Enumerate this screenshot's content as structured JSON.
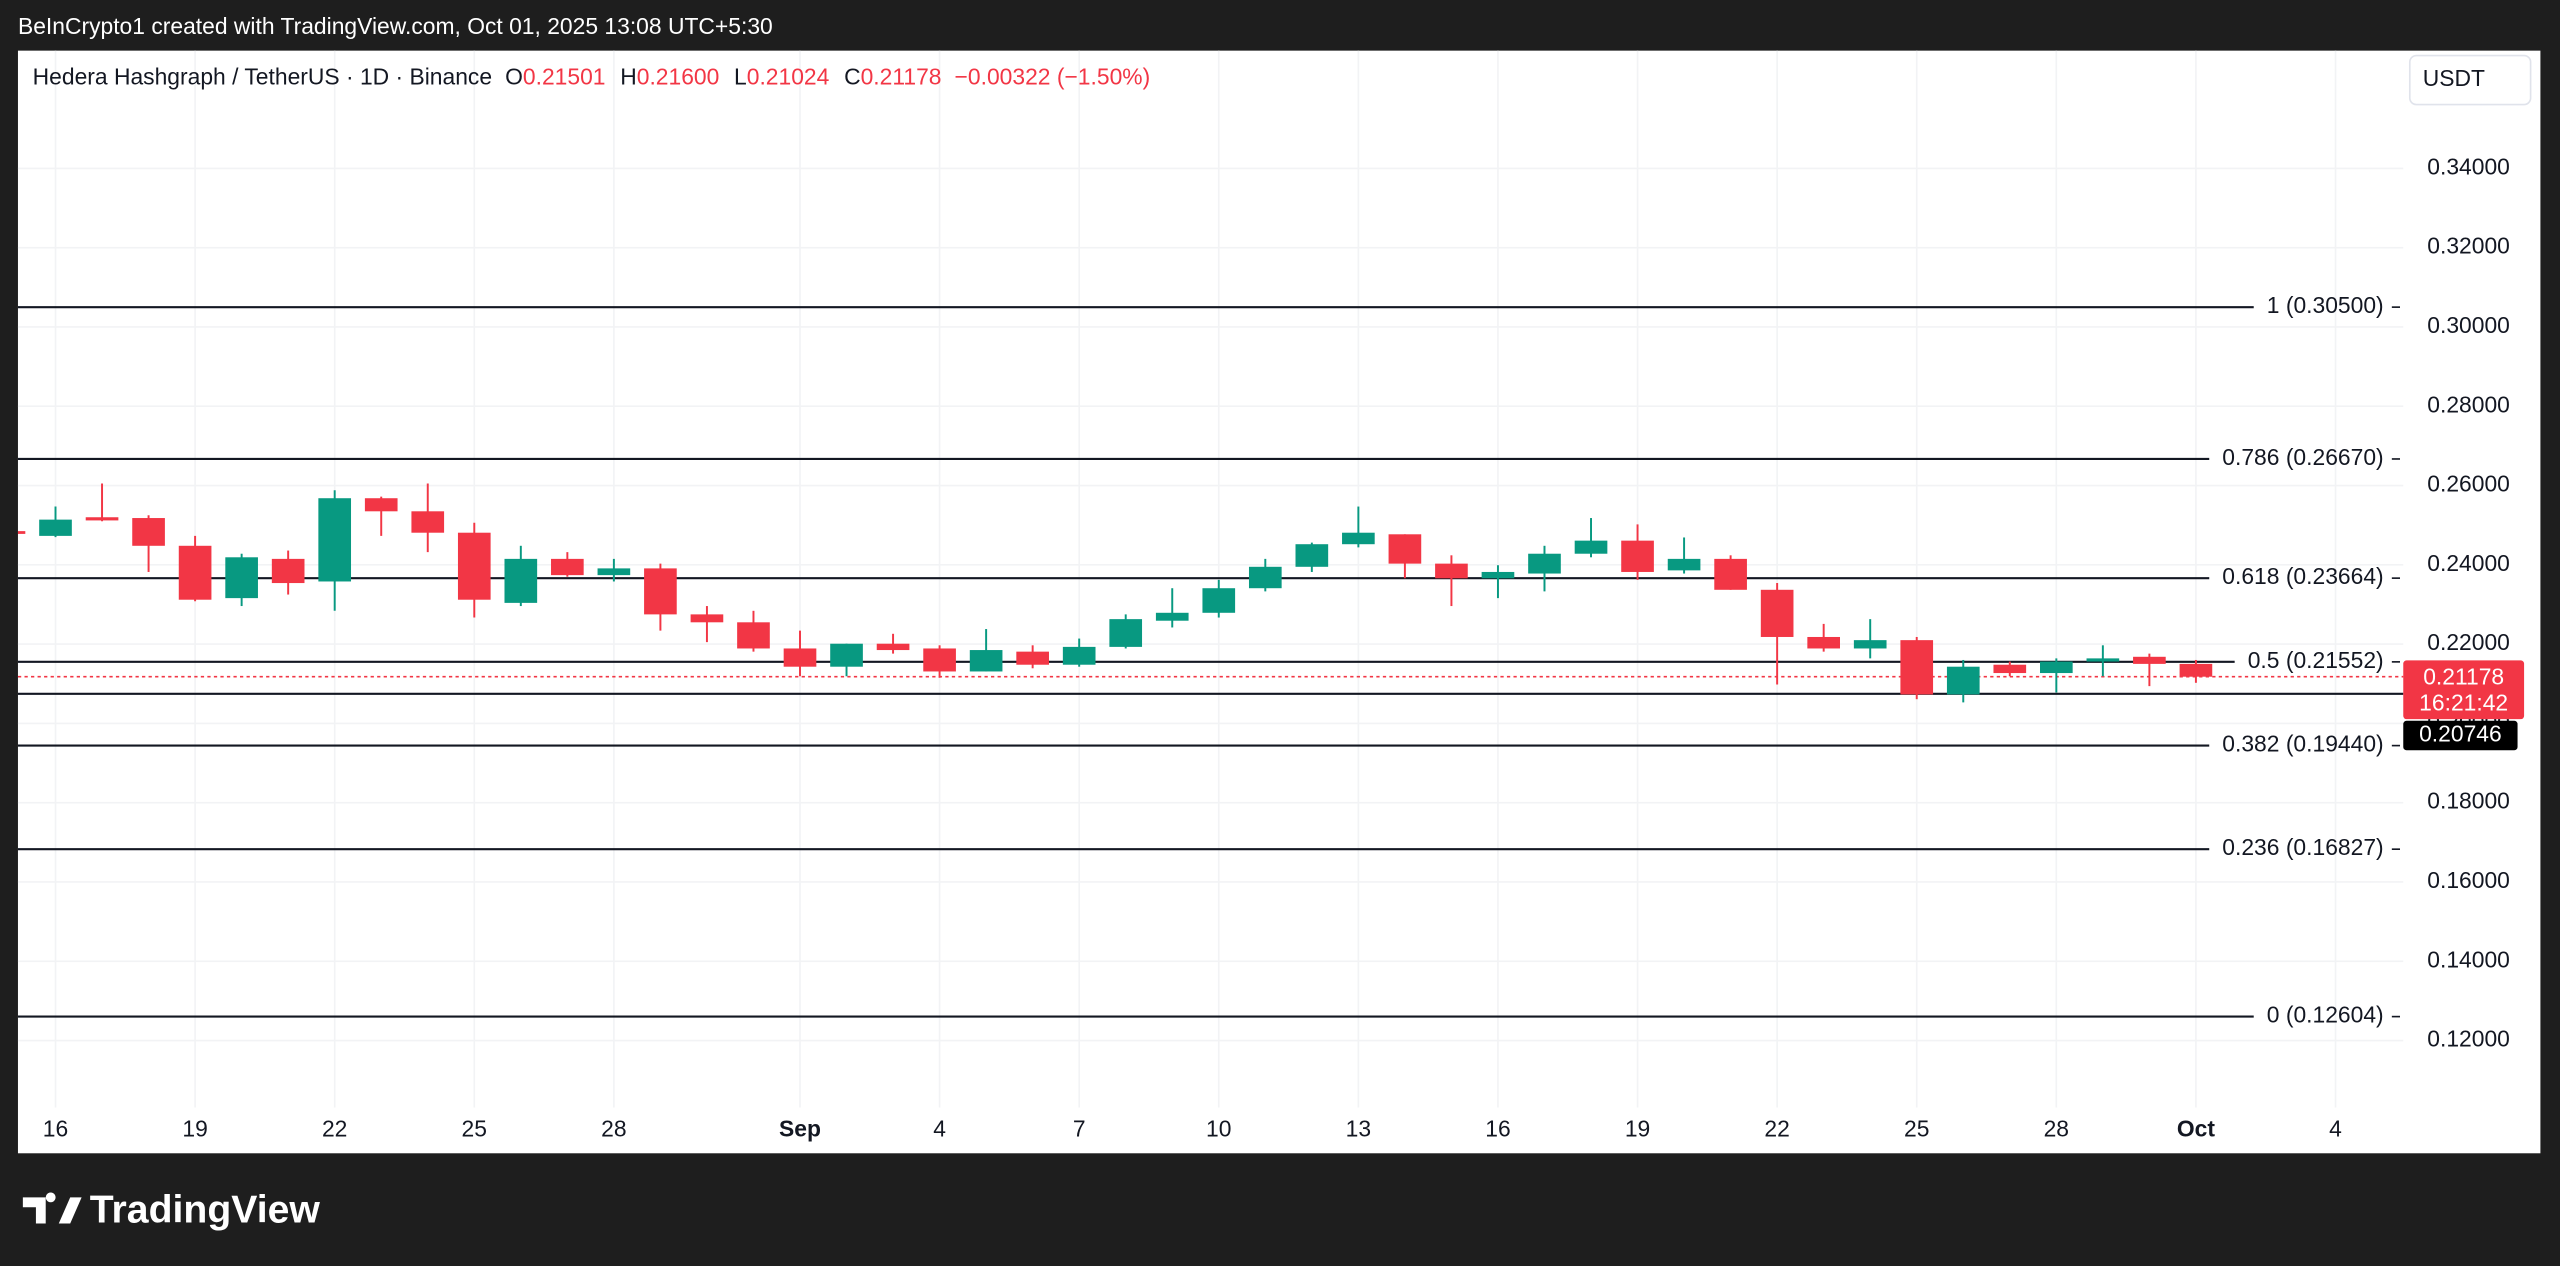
{
  "header": {
    "credit": "BeInCrypto1 created with TradingView.com, Oct 01, 2025 13:08 UTC+5:30"
  },
  "footer": {
    "brand": "TradingView"
  },
  "chart_data": {
    "type": "candlestick",
    "title": "Hedera Hashgraph / TetherUS · 1D · Binance",
    "legend": [
      {
        "key": "O",
        "value": "0.21501"
      },
      {
        "key": "H",
        "value": "0.21600"
      },
      {
        "key": "L",
        "value": "0.21024"
      },
      {
        "key": "C",
        "value": "0.21178"
      }
    ],
    "change": "−0.00322 (−1.50%)",
    "currency": "USDT",
    "up_color": "#089981",
    "down_color": "#f23645",
    "categories": [
      null,
      "16",
      null,
      null,
      "19",
      null,
      null,
      "22",
      null,
      null,
      "25",
      null,
      null,
      "28",
      null,
      null,
      null,
      "Sep",
      null,
      null,
      "4",
      null,
      null,
      "7",
      null,
      null,
      "10",
      null,
      null,
      "13",
      null,
      null,
      "16",
      null,
      null,
      "19",
      null,
      null,
      "22",
      null,
      null,
      "25",
      null,
      null,
      "28",
      null,
      null,
      "Oct",
      null,
      null,
      "4"
    ],
    "open": [
      0.2485,
      0.2473,
      0.252,
      0.2518,
      0.2448,
      0.2316,
      0.2415,
      0.2358,
      0.2568,
      0.2535,
      0.2481,
      0.2304,
      0.2415,
      0.2374,
      0.2391,
      0.2275,
      0.2255,
      0.2189,
      0.2143,
      0.2201,
      0.2189,
      0.2131,
      0.2181,
      0.2148,
      0.2193,
      0.2259,
      0.2279,
      0.2341,
      0.2395,
      0.2452,
      0.2477,
      0.2403,
      0.2366,
      0.2378,
      0.2428,
      0.2461,
      0.2386,
      0.2415,
      0.2337,
      0.2218,
      0.2189,
      0.221,
      0.2073,
      0.2148,
      0.2127,
      0.2156,
      0.2168,
      0.21501,
      null,
      null,
      null
    ],
    "high": [
      0.249,
      0.2547,
      0.2605,
      0.2525,
      0.2473,
      0.2428,
      0.2436,
      0.2588,
      0.2572,
      0.2605,
      0.2506,
      0.2448,
      0.2432,
      0.2415,
      0.2403,
      0.2296,
      0.2284,
      0.2234,
      0.2201,
      0.2226,
      0.2197,
      0.2238,
      0.2197,
      0.2214,
      0.2275,
      0.2341,
      0.2362,
      0.2415,
      0.2456,
      0.2547,
      0.2477,
      0.2424,
      0.2399,
      0.2448,
      0.2518,
      0.2502,
      0.2469,
      0.2424,
      0.2354,
      0.2251,
      0.2263,
      0.2218,
      0.216,
      0.2156,
      0.2164,
      0.2197,
      0.2176,
      0.216,
      null,
      null,
      null
    ],
    "low": [
      0.2475,
      0.247,
      0.251,
      0.2382,
      0.2308,
      0.2296,
      0.2325,
      0.2284,
      0.2473,
      0.2432,
      0.2267,
      0.2296,
      0.237,
      0.2358,
      0.2234,
      0.2205,
      0.2181,
      0.2119,
      0.2119,
      0.2176,
      0.2115,
      0.2131,
      0.2139,
      0.2143,
      0.2189,
      0.2242,
      0.2267,
      0.2333,
      0.2382,
      0.2444,
      0.2366,
      0.2296,
      0.2316,
      0.2333,
      0.2419,
      0.2362,
      0.2378,
      0.2337,
      0.2098,
      0.2181,
      0.2164,
      0.2061,
      0.2053,
      0.2119,
      0.2078,
      0.2119,
      0.2094,
      0.21024,
      null,
      null,
      null
    ],
    "close": [
      0.2478,
      0.2514,
      0.2512,
      0.2448,
      0.2312,
      0.2419,
      0.2354,
      0.2568,
      0.2535,
      0.2481,
      0.2312,
      0.2415,
      0.2374,
      0.2391,
      0.2275,
      0.2255,
      0.2189,
      0.2143,
      0.2201,
      0.2185,
      0.2131,
      0.2185,
      0.2148,
      0.2193,
      0.2263,
      0.2279,
      0.2341,
      0.2395,
      0.2452,
      0.2481,
      0.2403,
      0.2366,
      0.2382,
      0.2428,
      0.2461,
      0.2382,
      0.2415,
      0.2337,
      0.2218,
      0.2189,
      0.221,
      0.2073,
      0.2143,
      0.2127,
      0.2156,
      0.2164,
      0.21501,
      0.21178,
      null,
      null,
      null
    ],
    "ylim": [
      0.1031,
      0.3697
    ],
    "yticks": [
      {
        "value": 0.12,
        "label": "0.12000"
      },
      {
        "value": 0.14,
        "label": "0.14000"
      },
      {
        "value": 0.16,
        "label": "0.16000"
      },
      {
        "value": 0.18,
        "label": "0.18000"
      },
      {
        "value": 0.2,
        "label": "0.20000"
      },
      {
        "value": 0.22,
        "label": "0.22000"
      },
      {
        "value": 0.24,
        "label": "0.24000"
      },
      {
        "value": 0.26,
        "label": "0.26000"
      },
      {
        "value": 0.28,
        "label": "0.28000"
      },
      {
        "value": 0.3,
        "label": "0.30000"
      },
      {
        "value": 0.32,
        "label": "0.32000"
      },
      {
        "value": 0.34,
        "label": "0.34000"
      }
    ],
    "grid": true,
    "levels": [
      {
        "label": "1 (0.30500)",
        "value": 0.305
      },
      {
        "label": "0.786 (0.26670)",
        "value": 0.2667
      },
      {
        "label": "0.618 (0.23664)",
        "value": 0.23664
      },
      {
        "label": "0.5 (0.21552)",
        "value": 0.21552
      },
      {
        "label": "0.382 (0.19440)",
        "value": 0.1944
      },
      {
        "label": "0.236 (0.16827)",
        "value": 0.16827
      },
      {
        "label": "0 (0.12604)",
        "value": 0.12604
      }
    ],
    "last_price": {
      "value": 0.21178,
      "countdown": "16:21:42"
    },
    "marker_price": {
      "value": 0.20746
    }
  }
}
